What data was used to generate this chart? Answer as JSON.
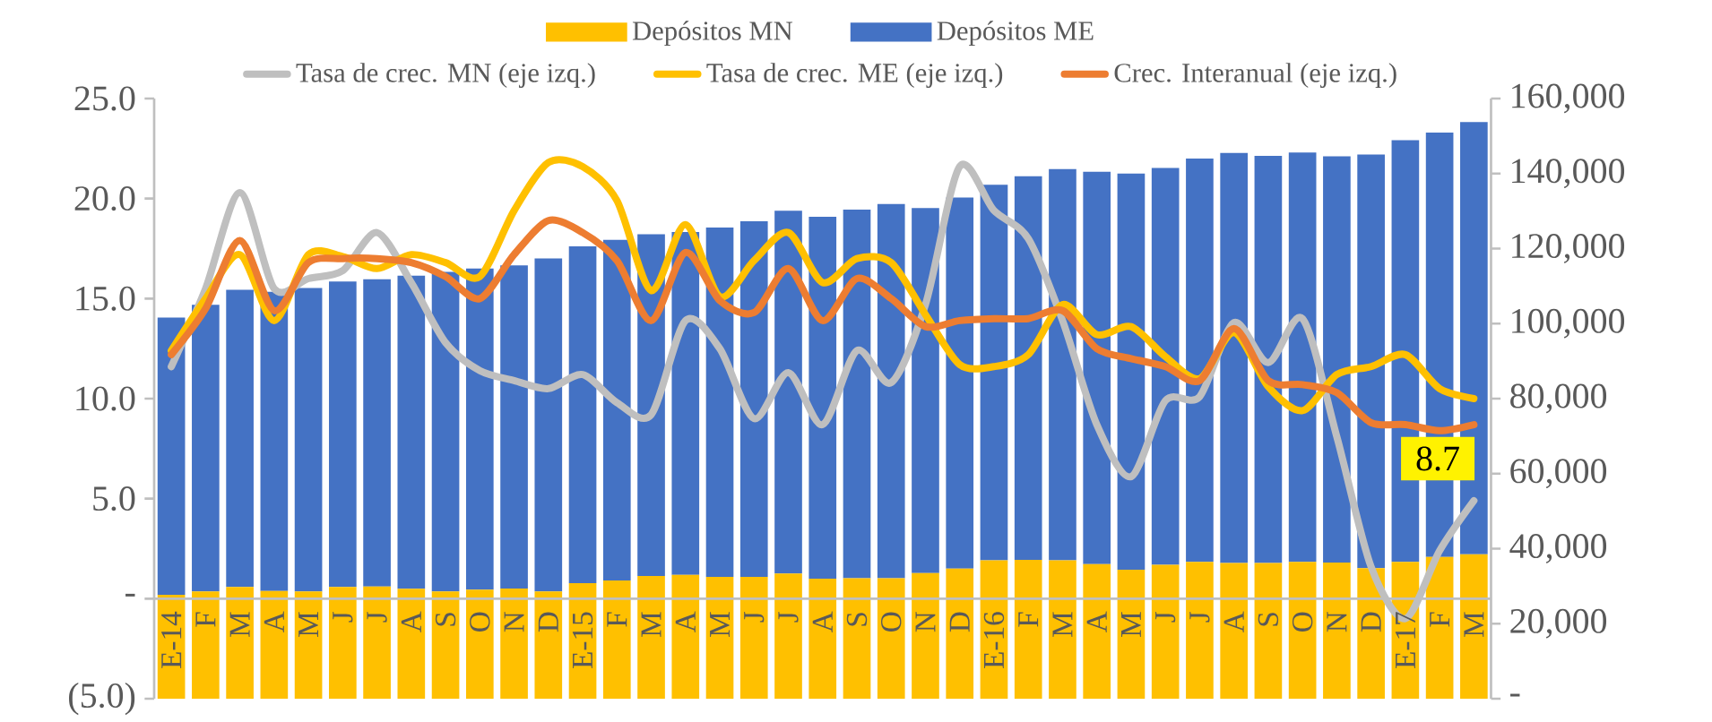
{
  "chart_data": {
    "type": "bar",
    "stacked": true,
    "legend": "top",
    "marker": "none",
    "categories": [
      "E-14",
      "F",
      "M",
      "A",
      "M",
      "J",
      "J",
      "A",
      "S",
      "O",
      "N",
      "D",
      "E-15",
      "F",
      "M",
      "A",
      "M",
      "J",
      "J",
      "A",
      "S",
      "O",
      "N",
      "D",
      "E-16",
      "F",
      "M",
      "A",
      "M",
      "J",
      "J",
      "A",
      "S",
      "O",
      "N",
      "D",
      "E-17",
      "F",
      "M"
    ],
    "ylim": [
      -5,
      25
    ],
    "yticks": [
      {
        "value": -5,
        "label": "(5.0)"
      },
      {
        "value": 0,
        "label": "-"
      },
      {
        "value": 5,
        "label": "5.0"
      },
      {
        "value": 10,
        "label": "10.0"
      },
      {
        "value": 15,
        "label": "15.0"
      },
      {
        "value": 20,
        "label": "20.0"
      },
      {
        "value": 25,
        "label": "25.0"
      }
    ],
    "y2lim": [
      0,
      160000
    ],
    "y2ticks": [
      {
        "value": 0,
        "label": "-"
      },
      {
        "value": 20000,
        "label": "20,000"
      },
      {
        "value": 40000,
        "label": "40,000"
      },
      {
        "value": 60000,
        "label": "60,000"
      },
      {
        "value": 80000,
        "label": "80,000"
      },
      {
        "value": 100000,
        "label": "100,000"
      },
      {
        "value": 120000,
        "label": "120,000"
      },
      {
        "value": 140000,
        "label": "140,000"
      },
      {
        "value": 160000,
        "label": "160,000"
      }
    ],
    "series": [
      {
        "name": "Depósitos MN",
        "axis": "y2",
        "color": "#ffc000",
        "values": [
          27700,
          28600,
          29800,
          28700,
          28600,
          29800,
          29900,
          29300,
          28600,
          29100,
          29400,
          28600,
          30800,
          31500,
          32700,
          33000,
          32500,
          32500,
          33400,
          32000,
          32100,
          32100,
          33500,
          34700,
          36900,
          37000,
          36900,
          35900,
          34400,
          35700,
          36500,
          36200,
          36200,
          36500,
          36300,
          34800,
          36500,
          37800,
          38500
        ]
      },
      {
        "name": "Depósitos ME",
        "axis": "y2",
        "color": "#4472c4",
        "values": [
          73900,
          76400,
          79200,
          79800,
          80900,
          81400,
          81900,
          83500,
          85200,
          85600,
          86100,
          88800,
          89800,
          90800,
          91100,
          91400,
          93100,
          94800,
          96700,
          96500,
          98300,
          99800,
          97300,
          98900,
          100100,
          102300,
          104300,
          104600,
          105600,
          105800,
          107500,
          109300,
          108500,
          109100,
          108300,
          110300,
          112400,
          113100,
          115200
        ]
      },
      {
        "name": "Tasa  de  crec. MN (eje izq.)",
        "type": "line",
        "axis": "y",
        "color": "#bfbfbf",
        "values": [
          11.6,
          15.5,
          20.3,
          15.5,
          16.0,
          16.4,
          18.3,
          15.8,
          12.8,
          11.4,
          10.9,
          10.5,
          11.2,
          9.8,
          9.2,
          13.9,
          12.5,
          9.0,
          11.3,
          8.7,
          12.4,
          10.8,
          14.7,
          21.6,
          19.4,
          18.0,
          13.9,
          8.7,
          6.1,
          9.9,
          10.1,
          13.8,
          11.8,
          14.0,
          8.1,
          1.6,
          -1.0,
          2.4,
          4.9
        ]
      },
      {
        "name": "Tasa de crec. ME (eje izq.)",
        "type": "line",
        "axis": "y",
        "color": "#ffc000",
        "values": [
          12.4,
          15.0,
          17.2,
          13.9,
          17.2,
          17.1,
          16.5,
          17.2,
          16.8,
          16.1,
          19.4,
          21.8,
          21.6,
          19.9,
          15.4,
          18.7,
          15.1,
          16.9,
          18.3,
          15.8,
          17.0,
          16.8,
          14.2,
          11.7,
          11.6,
          12.2,
          14.7,
          13.2,
          13.6,
          12.1,
          11.0,
          13.3,
          10.6,
          9.4,
          11.2,
          11.6,
          12.2,
          10.5,
          10.0
        ]
      },
      {
        "name": "Crec. Interanual (eje izq.)",
        "type": "line",
        "axis": "y",
        "color": "#ed7d31",
        "values": [
          12.2,
          14.5,
          17.9,
          14.4,
          16.8,
          17.0,
          17.0,
          16.8,
          16.1,
          15.0,
          17.2,
          18.9,
          18.3,
          16.9,
          13.9,
          17.3,
          14.9,
          14.3,
          16.5,
          13.9,
          16.0,
          15.0,
          13.6,
          13.9,
          14.0,
          14.0,
          14.4,
          12.5,
          12.0,
          11.6,
          10.9,
          13.5,
          10.9,
          10.7,
          10.3,
          8.8,
          8.7,
          8.4,
          8.7
        ]
      }
    ],
    "annotations": [
      "8.7"
    ]
  }
}
